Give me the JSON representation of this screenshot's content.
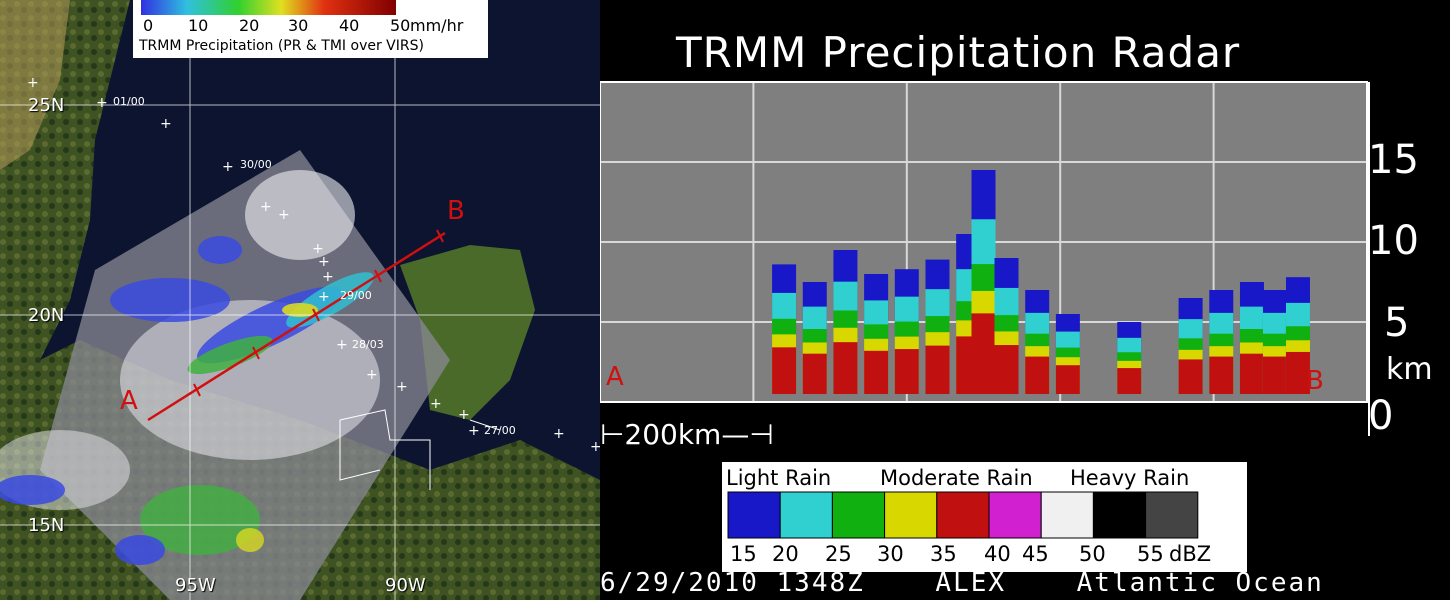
{
  "map": {
    "legend": {
      "ticks": [
        "0",
        "10",
        "20",
        "30",
        "40",
        "50"
      ],
      "unit": "mm/hr",
      "caption": "TRMM Precipitation (PR & TMI over VIRS)"
    },
    "lat_labels": [
      "25N",
      "20N",
      "15N"
    ],
    "lon_labels": [
      "95W",
      "90W"
    ],
    "track_labels": [
      "01/00",
      "30/00",
      "29/00",
      "28/03",
      "27/00"
    ],
    "section_start": "A",
    "section_end": "B",
    "colors": {
      "section_line": "#d01010",
      "land": "#4a5a28",
      "ocean": "#0c1430"
    }
  },
  "chart_data": {
    "type": "heatmap",
    "title": "TRMM Precipitation Radar",
    "x_start_label": "A",
    "x_end_label": "B",
    "xlabel": "",
    "ylabel": "km",
    "yticks": [
      "0",
      "5",
      "10",
      "15"
    ],
    "ylim": [
      0,
      20
    ],
    "grid": true,
    "scale_bar": "200km",
    "legend": {
      "categories": [
        "Light Rain",
        "Moderate Rain",
        "Heavy Rain"
      ],
      "ticks": [
        "15",
        "20",
        "25",
        "30",
        "35",
        "40",
        "45",
        "50",
        "55"
      ],
      "unit": "dBZ",
      "colors": [
        "#1818c8",
        "#30d0d0",
        "#10b010",
        "#d8d800",
        "#c01010",
        "#d020d0",
        "#f0f0f0",
        "#000000",
        "#444444"
      ]
    },
    "columns": [
      {
        "x": 0.24,
        "top_km": 8.6
      },
      {
        "x": 0.28,
        "top_km": 7.5
      },
      {
        "x": 0.32,
        "top_km": 9.5
      },
      {
        "x": 0.36,
        "top_km": 8.0
      },
      {
        "x": 0.4,
        "top_km": 8.3
      },
      {
        "x": 0.44,
        "top_km": 8.9
      },
      {
        "x": 0.48,
        "top_km": 10.5
      },
      {
        "x": 0.5,
        "top_km": 14.5
      },
      {
        "x": 0.53,
        "top_km": 9.0
      },
      {
        "x": 0.57,
        "top_km": 7.0
      },
      {
        "x": 0.61,
        "top_km": 5.5
      },
      {
        "x": 0.69,
        "top_km": 5.0
      },
      {
        "x": 0.77,
        "top_km": 6.5
      },
      {
        "x": 0.81,
        "top_km": 7.0
      },
      {
        "x": 0.85,
        "top_km": 7.5
      },
      {
        "x": 0.88,
        "top_km": 7.0
      },
      {
        "x": 0.91,
        "top_km": 7.8
      }
    ],
    "footer": "6/29/2010 1348Z    ALEX    Atlantic Ocean"
  }
}
